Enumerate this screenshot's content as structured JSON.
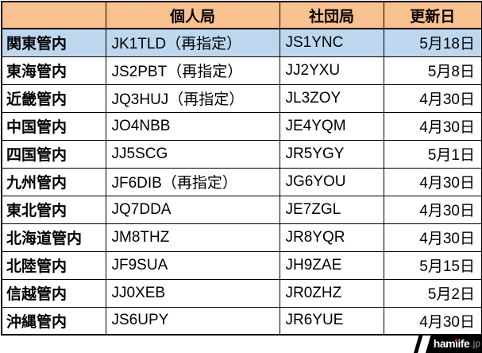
{
  "chart_data": {
    "type": "table",
    "columns": [
      "",
      "個人局",
      "社団局",
      "更新日"
    ],
    "highlighted_row": "関東管内",
    "rows": [
      {
        "region": "関東管内",
        "individual": "JK1TLD（再指定）",
        "club": "JS1YNC",
        "date": "5月18日",
        "highlight": true
      },
      {
        "region": "東海管内",
        "individual": "JS2PBT（再指定）",
        "club": "JJ2YXU",
        "date": "5月8日",
        "highlight": false
      },
      {
        "region": "近畿管内",
        "individual": "JQ3HUJ（再指定）",
        "club": "JL3ZOY",
        "date": "4月30日",
        "highlight": false
      },
      {
        "region": "中国管内",
        "individual": "JO4NBB",
        "club": "JE4YQM",
        "date": "4月30日",
        "highlight": false
      },
      {
        "region": "四国管内",
        "individual": "JJ5SCG",
        "club": "JR5YGY",
        "date": "5月1日",
        "highlight": false
      },
      {
        "region": "九州管内",
        "individual": "JF6DIB（再指定）",
        "club": "JG6YOU",
        "date": "4月30日",
        "highlight": false
      },
      {
        "region": "東北管内",
        "individual": "JQ7DDA",
        "club": "JE7ZGL",
        "date": "4月30日",
        "highlight": false
      },
      {
        "region": "北海道管内",
        "individual": "JM8THZ",
        "club": "JR8YQR",
        "date": "4月30日",
        "highlight": false
      },
      {
        "region": "北陸管内",
        "individual": "JF9SUA",
        "club": "JH9ZAE",
        "date": "5月15日",
        "highlight": false
      },
      {
        "region": "信越管内",
        "individual": "JJ0XEB",
        "club": "JR0ZHZ",
        "date": "5月2日",
        "highlight": false
      },
      {
        "region": "沖縄管内",
        "individual": "JS6UPY",
        "club": "JR6YUE",
        "date": "4月30日",
        "highlight": false
      }
    ]
  },
  "logo": {
    "text": "hamlife",
    "suffix": ".jp"
  },
  "colors": {
    "header_bg": "#f8c18d",
    "highlight_bg": "#bdd7ee",
    "border": "#000000",
    "logo_bg": "#000000",
    "logo_text": "#ffffff",
    "logo_suffix": "#9a9a9a",
    "logo_idot_red": "#e8382f"
  }
}
